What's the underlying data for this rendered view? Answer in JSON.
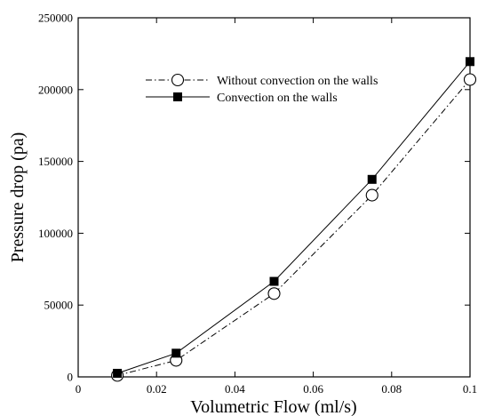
{
  "chart_data": {
    "type": "line",
    "title": "",
    "xlabel": "Volumetric Flow (ml/s)",
    "ylabel": "Pressure drop (pa)",
    "xlim": [
      0,
      0.1
    ],
    "ylim": [
      0,
      250000
    ],
    "x_ticks": [
      "0",
      "0.02",
      "0.04",
      "0.06",
      "0.08",
      "0.1"
    ],
    "y_ticks": [
      "0",
      "50000",
      "100000",
      "150000",
      "200000",
      "250000"
    ],
    "x_tick_values": [
      0,
      0.02,
      0.04,
      0.06,
      0.08,
      0.1
    ],
    "y_tick_values": [
      0,
      50000,
      100000,
      150000,
      200000,
      250000
    ],
    "grid": false,
    "legend_position": "top-center",
    "series": [
      {
        "name": "Without convection on the walls",
        "marker": "open-circle",
        "line_style": "dash-dot",
        "x": [
          0.01,
          0.025,
          0.05,
          0.075,
          0.1
        ],
        "y": [
          1000,
          11500,
          58000,
          126500,
          207000
        ]
      },
      {
        "name": "Convection on the walls",
        "marker": "filled-square",
        "line_style": "solid",
        "x": [
          0.01,
          0.025,
          0.05,
          0.075,
          0.1
        ],
        "y": [
          2500,
          16500,
          66500,
          137500,
          219500
        ]
      }
    ]
  }
}
